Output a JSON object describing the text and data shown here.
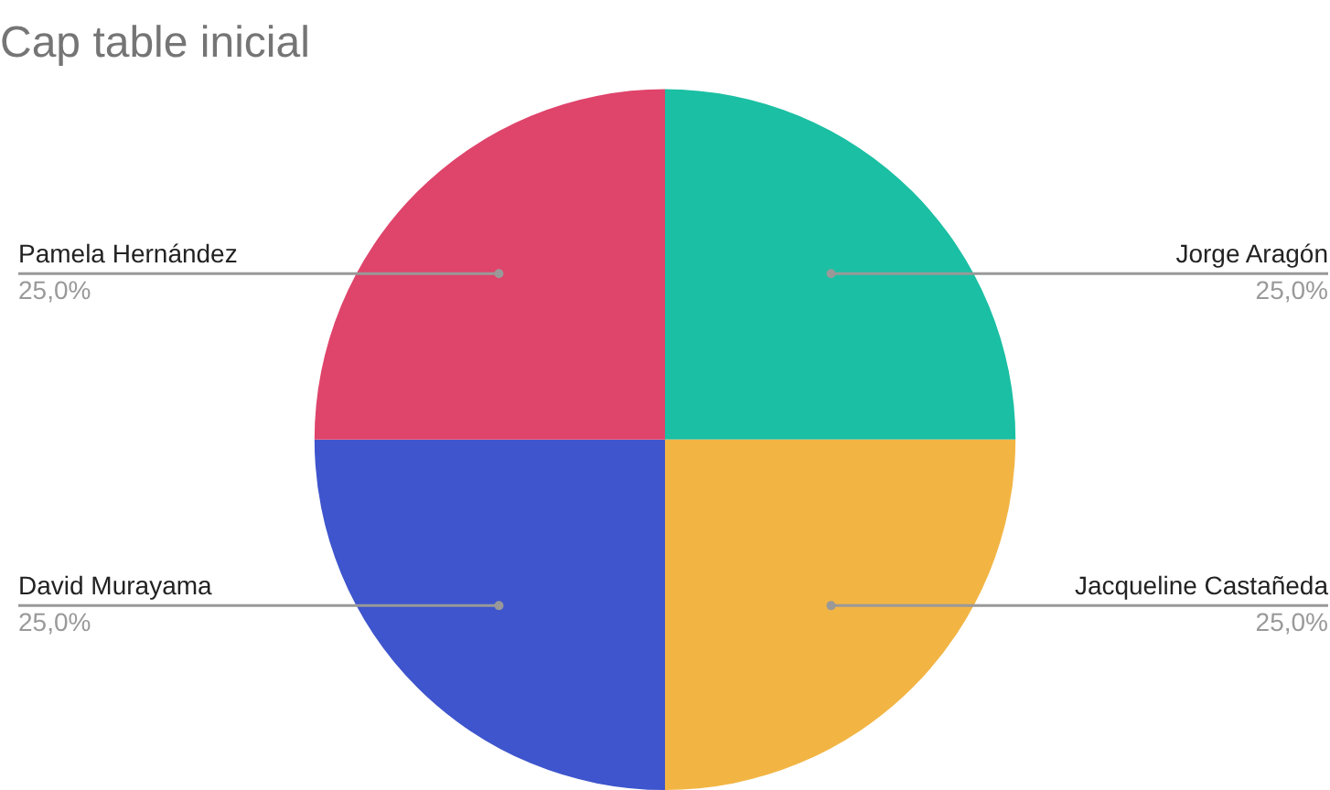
{
  "chart_data": {
    "type": "pie",
    "title": "Cap table inicial",
    "categories": [
      "Jorge Aragón",
      "Jacqueline Castañeda",
      "David Murayama",
      "Pamela Hernández"
    ],
    "values": [
      25,
      25,
      25,
      25
    ],
    "colors": [
      "#1bbfa3",
      "#f2b544",
      "#3e55cd",
      "#df446b"
    ],
    "value_labels": [
      "25,0%",
      "25,0%",
      "25,0%",
      "25,0%"
    ],
    "legend": false
  }
}
